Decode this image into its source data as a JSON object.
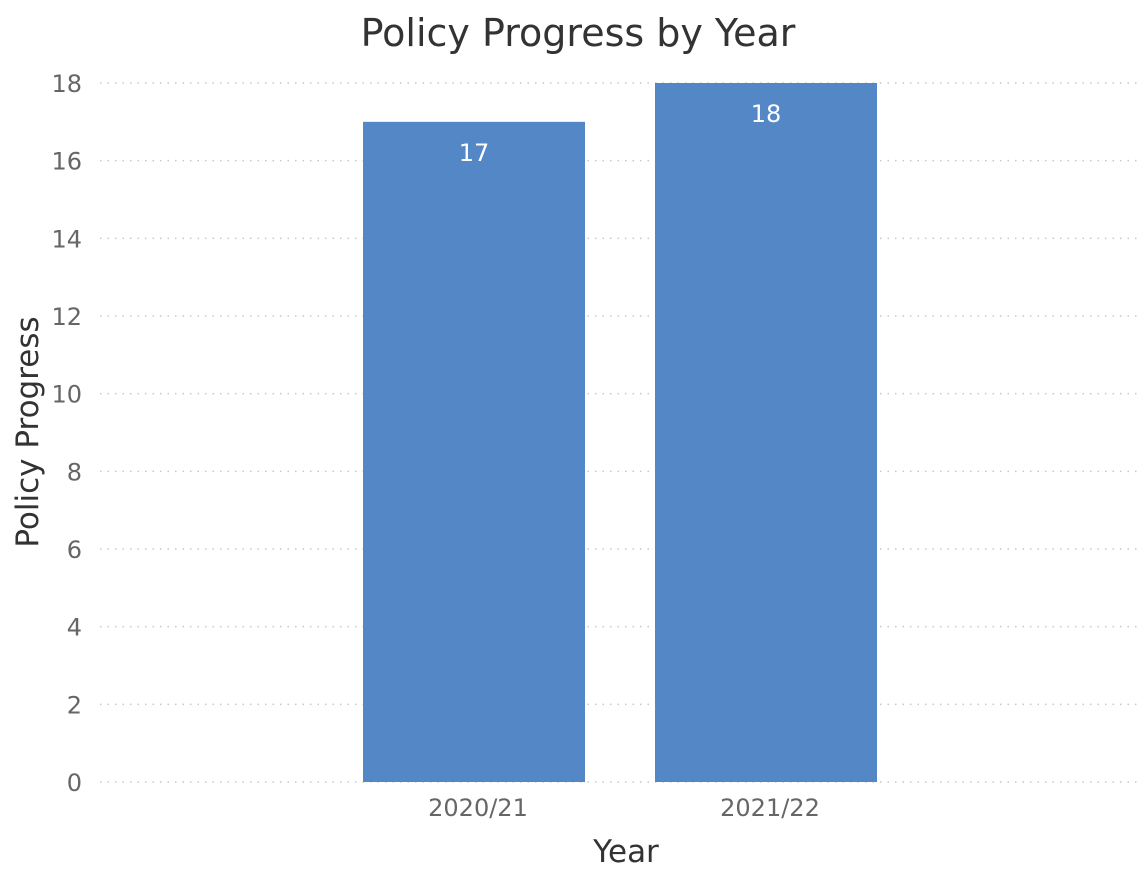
{
  "chart_data": {
    "type": "bar",
    "title": "Policy Progress by Year",
    "xlabel": "Year",
    "ylabel": "Policy Progress",
    "categories": [
      "2020/21",
      "2021/22"
    ],
    "values": [
      17,
      18
    ],
    "data_labels": [
      "17",
      "18"
    ],
    "ylim": [
      0,
      18
    ],
    "yticks": [
      "0",
      "2",
      "4",
      "6",
      "8",
      "10",
      "12",
      "14",
      "16",
      "18"
    ],
    "grid": true,
    "legend": "none",
    "bar_color": "#5387c6"
  }
}
